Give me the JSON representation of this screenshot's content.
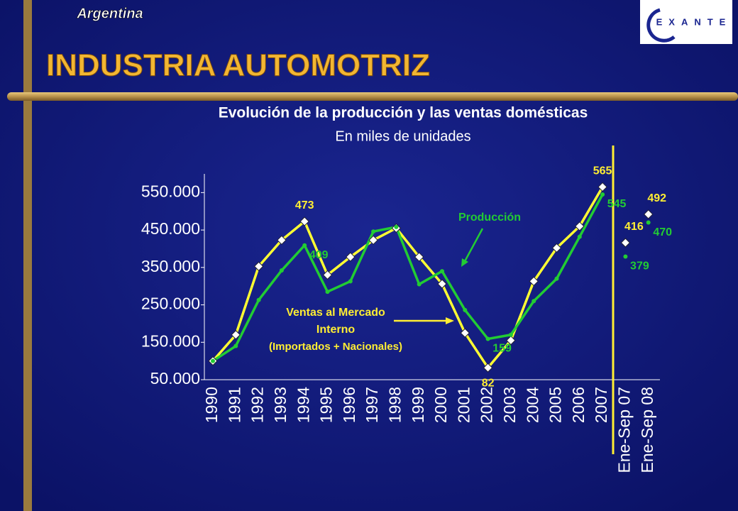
{
  "header": {
    "country": "Argentina",
    "title": "Industria Automotriz",
    "logo": "EXANTE"
  },
  "chart_data": {
    "type": "line",
    "title": "Evolución de la producción y las ventas domésticas",
    "subtitle": "En miles de unidades",
    "categories": [
      "1990",
      "1991",
      "1992",
      "1993",
      "1994",
      "1995",
      "1996",
      "1997",
      "1998",
      "1999",
      "2000",
      "2001",
      "2002",
      "2003",
      "2004",
      "2005",
      "2006",
      "2007",
      "Ene-Sep 07",
      "Ene-Sep 08"
    ],
    "series": [
      {
        "name": "Ventas al Mercado Interno",
        "note": "(Importados + Nacionales)",
        "color": "#ffff33",
        "values": [
          100000,
          170000,
          353000,
          423000,
          473000,
          330000,
          378000,
          423000,
          455000,
          378000,
          306000,
          175000,
          82000,
          155000,
          313000,
          402000,
          460000,
          565000,
          416000,
          492000
        ],
        "value_labels": [
          null,
          null,
          null,
          null,
          "473",
          null,
          null,
          null,
          null,
          null,
          null,
          null,
          "82",
          null,
          null,
          null,
          null,
          "565",
          "416",
          "492"
        ]
      },
      {
        "name": "Producción",
        "color": "#22cc33",
        "values": [
          100000,
          140000,
          263000,
          342000,
          409000,
          285000,
          313000,
          446000,
          458000,
          305000,
          340000,
          236000,
          159000,
          170000,
          260000,
          320000,
          432000,
          545000,
          379000,
          470000
        ],
        "value_labels": [
          null,
          null,
          null,
          null,
          "409",
          null,
          null,
          null,
          null,
          null,
          null,
          null,
          "159",
          null,
          null,
          null,
          null,
          "545",
          "379",
          "470"
        ]
      }
    ],
    "ylim": [
      50000,
      600000
    ],
    "yticks": [
      {
        "value": 50000,
        "label": "50.000"
      },
      {
        "value": 150000,
        "label": "150.000"
      },
      {
        "value": 250000,
        "label": "250.000"
      },
      {
        "value": 350000,
        "label": "350.000"
      },
      {
        "value": 450000,
        "label": "450.000"
      },
      {
        "value": 550000,
        "label": "550.000"
      }
    ]
  }
}
